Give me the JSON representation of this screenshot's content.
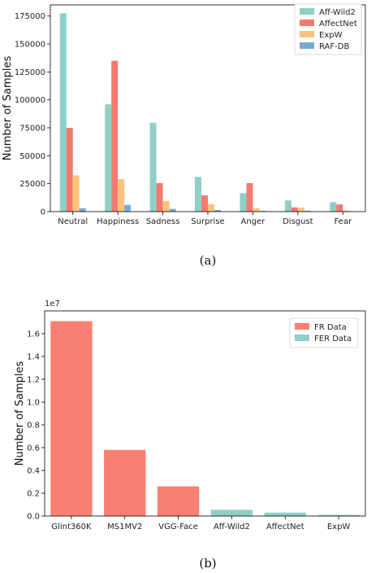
{
  "colors": {
    "aff_wild2": "#8fcfc8",
    "affectnet": "#f27b6f",
    "expw": "#fcc27c",
    "rafdb": "#7ba9cf",
    "fr": "#f88072",
    "fer": "#8fcfc8"
  },
  "chart_data": [
    {
      "type": "bar",
      "caption": "(a)",
      "categories": [
        "Neutral",
        "Happiness",
        "Sadness",
        "Surprise",
        "Anger",
        "Disgust",
        "Fear"
      ],
      "series": [
        {
          "name": "Aff-Wild2",
          "color_key": "aff_wild2",
          "values": [
            177500,
            96000,
            79500,
            31000,
            16500,
            10000,
            8500
          ]
        },
        {
          "name": "AffectNet",
          "color_key": "affectnet",
          "values": [
            75000,
            135000,
            25500,
            14500,
            25500,
            3800,
            6500
          ]
        },
        {
          "name": "ExpW",
          "color_key": "expw",
          "values": [
            32500,
            29000,
            9500,
            6500,
            3000,
            3500,
            1000
          ]
        },
        {
          "name": "RAF-DB",
          "color_key": "rafdb",
          "values": [
            3000,
            6000,
            2500,
            1500,
            700,
            800,
            300
          ]
        }
      ],
      "ylabel": "Number of Samples",
      "xlabel": "",
      "ylim": [
        0,
        185000
      ],
      "yticks": [
        0,
        25000,
        50000,
        75000,
        100000,
        125000,
        150000,
        175000
      ],
      "legend": "top-right",
      "grid": false
    },
    {
      "type": "bar",
      "caption": "(b)",
      "categories": [
        "Glint360K",
        "MS1MV2",
        "VGG-Face",
        "Aff-Wild2",
        "AffectNet",
        "ExpW"
      ],
      "values": [
        1.71,
        0.58,
        0.26,
        0.055,
        0.03,
        0.01
      ],
      "bar_series": [
        "FR Data",
        "FR Data",
        "FR Data",
        "FER Data",
        "FER Data",
        "FER Data"
      ],
      "series": [
        {
          "name": "FR Data",
          "color_key": "fr"
        },
        {
          "name": "FER Data",
          "color_key": "fer"
        }
      ],
      "ylabel": "Number of Samples",
      "y_scale_label": "1e7",
      "ylim": [
        0,
        1.8
      ],
      "yticks": [
        0,
        0.2,
        0.4,
        0.6,
        0.8,
        1.0,
        1.2,
        1.4,
        1.6
      ],
      "ytick_labels": [
        "0.0",
        "0.2",
        "0.4",
        "0.6",
        "0.8",
        "1.0",
        "1.2",
        "1.4",
        "1.6"
      ],
      "legend": "top-right",
      "grid": false
    }
  ]
}
